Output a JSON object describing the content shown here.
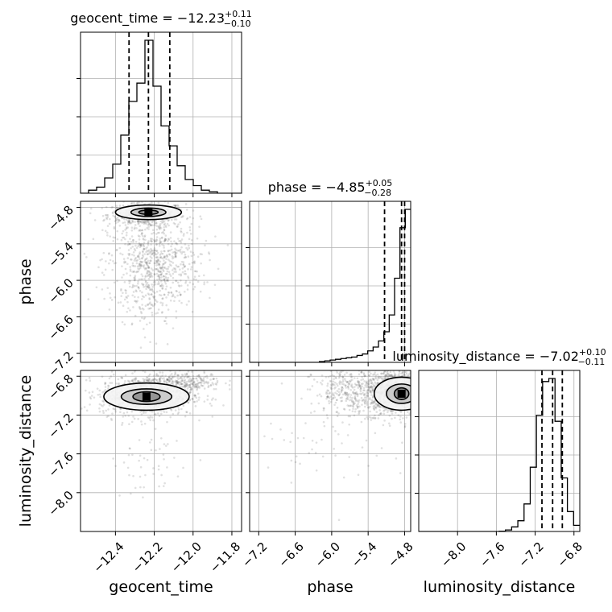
{
  "chart_data": {
    "type": "corner",
    "parameters": [
      {
        "name": "geocent_time",
        "xlabel": "geocent_time",
        "ylabel": "",
        "range": [
          -12.58,
          -11.75
        ],
        "ticks": [
          -12.4,
          -12.2,
          -12.0,
          -11.8
        ],
        "tick_labels": [
          "−12.4",
          "−12.2",
          "−12.0",
          "−11.8"
        ],
        "median": -12.23,
        "q16": -12.33,
        "q84": -12.12,
        "title": {
          "base": "geocent_time = −12.23",
          "sup": "+0.11",
          "sub": "−0.10"
        }
      },
      {
        "name": "phase",
        "xlabel": "phase",
        "ylabel": "phase",
        "range": [
          -7.35,
          -4.7
        ],
        "ticks": [
          -7.2,
          -6.6,
          -6.0,
          -5.4,
          -4.8
        ],
        "tick_labels": [
          "−7.2",
          "−6.6",
          "−6.0",
          "−5.4",
          "−4.8"
        ],
        "median": -4.85,
        "q16": -5.13,
        "q84": -4.8,
        "title": {
          "base": "phase = −4.85",
          "sup": "+0.05",
          "sub": "−0.28"
        }
      },
      {
        "name": "luminosity_distance",
        "xlabel": "luminosity_distance",
        "ylabel": "luminosity_distance",
        "range": [
          -8.4,
          -6.74
        ],
        "ticks": [
          -8.0,
          -7.6,
          -7.2,
          -6.8
        ],
        "tick_labels": [
          "−8.0",
          "−7.6",
          "−7.2",
          "−6.8"
        ],
        "median": -7.02,
        "q16": -7.13,
        "q84": -6.92,
        "title": {
          "base": "luminosity_distance = −7.02",
          "sup": "+0.10",
          "sub": "−0.11"
        }
      }
    ],
    "histograms": [
      [
        0.0,
        0.02,
        0.04,
        0.1,
        0.19,
        0.38,
        0.6,
        0.72,
        1.0,
        0.7,
        0.44,
        0.31,
        0.18,
        0.09,
        0.05,
        0.02,
        0.01,
        0.0,
        0.0,
        0.0
      ],
      [
        0.0,
        0.0,
        0.0,
        0.0,
        0.0,
        0.0,
        0.0,
        0.0,
        0.0,
        0.0,
        0.0,
        0.0,
        0.0,
        0.005,
        0.01,
        0.015,
        0.02,
        0.025,
        0.03,
        0.035,
        0.045,
        0.055,
        0.075,
        0.1,
        0.14,
        0.2,
        0.31,
        0.55,
        0.88,
        1.0
      ],
      [
        0.0,
        0.0,
        0.0,
        0.0,
        0.0,
        0.0,
        0.0,
        0.0,
        0.0,
        0.0,
        0.0,
        0.0,
        0.0,
        0.002,
        0.01,
        0.03,
        0.07,
        0.18,
        0.42,
        0.76,
        0.98,
        1.0,
        0.72,
        0.35,
        0.13,
        0.04
      ]
    ],
    "scatter_clusters": [
      {
        "params": [
          0,
          1
        ],
        "center": [
          -12.24,
          -4.92
        ],
        "spread": [
          0.1,
          0.1
        ],
        "n": 500
      },
      {
        "params": [
          0,
          1
        ],
        "center": [
          -12.2,
          -5.7
        ],
        "spread": [
          0.12,
          0.35
        ],
        "n": 700
      },
      {
        "params": [
          0,
          1
        ],
        "center": [
          -12.22,
          -6.3
        ],
        "spread": [
          0.08,
          0.3
        ],
        "n": 120
      },
      {
        "params": [
          0,
          2
        ],
        "center": [
          -12.24,
          -7.0
        ],
        "spread": [
          0.12,
          0.1
        ],
        "n": 900
      },
      {
        "params": [
          0,
          2
        ],
        "center": [
          -12.05,
          -6.85
        ],
        "spread": [
          0.1,
          0.05
        ],
        "n": 250
      },
      {
        "params": [
          0,
          2
        ],
        "center": [
          -12.22,
          -7.6
        ],
        "spread": [
          0.1,
          0.25
        ],
        "n": 60
      },
      {
        "params": [
          1,
          2
        ],
        "center": [
          -4.95,
          -6.95
        ],
        "spread": [
          0.25,
          0.12
        ],
        "n": 900
      },
      {
        "params": [
          1,
          2
        ],
        "center": [
          -5.6,
          -6.95
        ],
        "spread": [
          0.35,
          0.12
        ],
        "n": 400
      },
      {
        "params": [
          1,
          2
        ],
        "center": [
          -6.0,
          -7.4
        ],
        "spread": [
          0.6,
          0.3
        ],
        "n": 60
      }
    ],
    "contours": [
      {
        "params": [
          0,
          1
        ],
        "center": [
          -12.23,
          -4.88
        ],
        "radii": [
          [
            0.17,
            0.12
          ],
          [
            0.09,
            0.07
          ],
          [
            0.05,
            0.035
          ]
        ]
      },
      {
        "params": [
          0,
          2
        ],
        "center": [
          -12.24,
          -7.01
        ],
        "radii": [
          [
            0.22,
            0.14
          ],
          [
            0.13,
            0.08
          ],
          [
            0.07,
            0.05
          ]
        ]
      },
      {
        "params": [
          1,
          2
        ],
        "center": [
          -4.85,
          -6.98
        ],
        "radii": [
          [
            0.45,
            0.17
          ],
          [
            0.25,
            0.1
          ],
          [
            0.12,
            0.06
          ]
        ]
      }
    ]
  }
}
